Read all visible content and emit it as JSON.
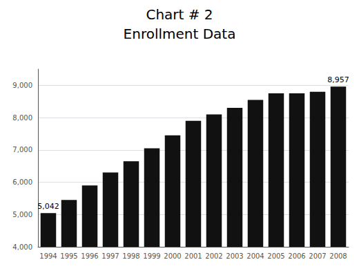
{
  "chart_data": {
    "type": "bar",
    "title": "Chart # 2",
    "subtitle": "Enrollment Data",
    "categories": [
      "1994",
      "1995",
      "1996",
      "1997",
      "1998",
      "1999",
      "2000",
      "2001",
      "2002",
      "2003",
      "2004",
      "2005",
      "2006",
      "2007",
      "2008"
    ],
    "values": [
      5042,
      5450,
      5900,
      6300,
      6650,
      7050,
      7450,
      7900,
      8100,
      8300,
      8550,
      8750,
      8750,
      8800,
      8957
    ],
    "color": "#111111",
    "ylim": [
      4000,
      9500
    ],
    "yticks": [
      {
        "value": 4000,
        "label": "4,000"
      },
      {
        "value": 5000,
        "label": "5,000"
      },
      {
        "value": 6000,
        "label": "6,000"
      },
      {
        "value": 7000,
        "label": "7,000"
      },
      {
        "value": 8000,
        "label": "8,000"
      },
      {
        "value": 9000,
        "label": "9,000"
      }
    ],
    "grid": true,
    "annotations": [
      {
        "text": "5,042",
        "x": "1994",
        "y": 5042
      },
      {
        "text": "8,957",
        "x": "2008",
        "y": 8957
      }
    ]
  }
}
